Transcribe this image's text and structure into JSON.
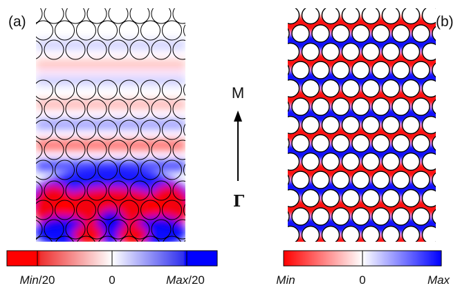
{
  "panels": [
    {
      "label": "(a)",
      "colorbar": {
        "min_label_italic": "Min",
        "min_label_suffix": "/20",
        "mid_label": "0",
        "max_label_italic": "Max",
        "max_label_suffix": "/20"
      }
    },
    {
      "label": "(b)",
      "colorbar": {
        "min_label_italic": "Min",
        "mid_label": "0",
        "max_label_italic": "Max"
      }
    }
  ],
  "direction": {
    "top_label": "M",
    "bottom_label": "Γ"
  },
  "colors": {
    "negative": "#ff0000",
    "zero": "#ffffff",
    "positive": "#0000ff",
    "outline": "#000000"
  }
}
